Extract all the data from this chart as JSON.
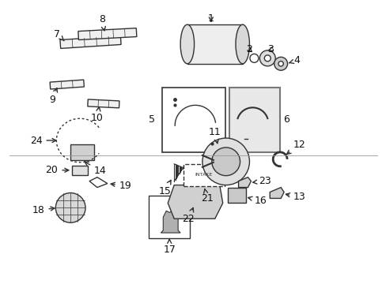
{
  "bg_color": "#ffffff",
  "line_color": "#333333",
  "label_color": "#111111",
  "label_fontsize": 9,
  "fig_width": 4.89,
  "fig_height": 3.6,
  "dpi": 100
}
